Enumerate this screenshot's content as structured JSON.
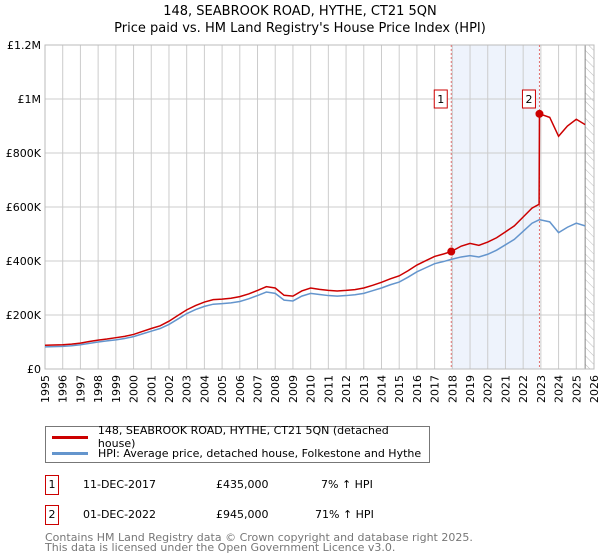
{
  "title": "148, SEABROOK ROAD, HYTHE, CT21 5QN",
  "subtitle": "Price paid vs. HM Land Registry's House Price Index (HPI)",
  "legend": [
    {
      "label": "148, SEABROOK ROAD, HYTHE, CT21 5QN (detached house)",
      "color": "#cc0000"
    },
    {
      "label": "HPI: Average price, detached house, Folkestone and Hythe",
      "color": "#6495cd"
    }
  ],
  "sales": [
    {
      "num": "1",
      "date": "11-DEC-2017",
      "price": "£435,000",
      "hpi": "7% ↑ HPI"
    },
    {
      "num": "2",
      "date": "01-DEC-2022",
      "price": "£945,000",
      "hpi": "71% ↑ HPI"
    }
  ],
  "footer": [
    "Contains HM Land Registry data © Crown copyright and database right 2025.",
    "This data is licensed under the Open Government Licence v3.0."
  ],
  "chart_data": {
    "type": "line",
    "title": "148, SEABROOK ROAD, HYTHE, CT21 5QN",
    "xlim": [
      1995,
      2026
    ],
    "ylim": [
      0,
      1200000
    ],
    "yticks": [
      0,
      200000,
      400000,
      600000,
      800000,
      1000000,
      1200000
    ],
    "ytick_labels": [
      "£0",
      "£200K",
      "£400K",
      "£600K",
      "£800K",
      "£1M",
      "£1.2M"
    ],
    "xticks": [
      1995,
      1996,
      1997,
      1998,
      1999,
      2000,
      2001,
      2002,
      2003,
      2004,
      2005,
      2006,
      2007,
      2008,
      2009,
      2010,
      2011,
      2012,
      2013,
      2014,
      2015,
      2016,
      2017,
      2018,
      2019,
      2020,
      2021,
      2022,
      2023,
      2024,
      2025,
      2026
    ],
    "grid": true,
    "shaded_range": [
      2017.94,
      2022.92
    ],
    "future_hatch_from": 2025.5,
    "markers": [
      {
        "label": "1",
        "x": 2017.94,
        "y": 435000
      },
      {
        "label": "2",
        "x": 2022.92,
        "y": 945000
      }
    ],
    "hpi": {
      "x": [
        1995,
        1995.5,
        1996,
        1996.5,
        1997,
        1997.5,
        1998,
        1998.5,
        1999,
        1999.5,
        2000,
        2000.5,
        2001,
        2001.5,
        2002,
        2002.5,
        2003,
        2003.5,
        2004,
        2004.5,
        2005,
        2005.5,
        2006,
        2006.5,
        2007,
        2007.5,
        2008,
        2008.5,
        2009,
        2009.5,
        2010,
        2010.5,
        2011,
        2011.5,
        2012,
        2012.5,
        2013,
        2013.5,
        2014,
        2014.5,
        2015,
        2015.5,
        2016,
        2016.5,
        2017,
        2017.5,
        2017.94,
        2018.5,
        2019,
        2019.5,
        2020,
        2020.5,
        2021,
        2021.5,
        2022,
        2022.5,
        2022.92,
        2023.5,
        2024,
        2024.5,
        2025,
        2025.5
      ],
      "y": [
        82000,
        83000,
        84000,
        86000,
        90000,
        95000,
        100000,
        104000,
        108000,
        113000,
        120000,
        130000,
        140000,
        150000,
        165000,
        185000,
        205000,
        220000,
        232000,
        240000,
        242000,
        245000,
        250000,
        260000,
        272000,
        285000,
        280000,
        255000,
        252000,
        270000,
        280000,
        276000,
        272000,
        270000,
        272000,
        275000,
        280000,
        290000,
        300000,
        312000,
        322000,
        340000,
        360000,
        375000,
        390000,
        398000,
        406000,
        415000,
        420000,
        415000,
        425000,
        440000,
        460000,
        480000,
        510000,
        540000,
        553000,
        545000,
        505000,
        525000,
        540000,
        530000
      ]
    },
    "property": {
      "x": [
        1995,
        1995.5,
        1996,
        1996.5,
        1997,
        1997.5,
        1998,
        1998.5,
        1999,
        1999.5,
        2000,
        2000.5,
        2001,
        2001.5,
        2002,
        2002.5,
        2003,
        2003.5,
        2004,
        2004.5,
        2005,
        2005.5,
        2006,
        2006.5,
        2007,
        2007.5,
        2008,
        2008.5,
        2009,
        2009.5,
        2010,
        2010.5,
        2011,
        2011.5,
        2012,
        2012.5,
        2013,
        2013.5,
        2014,
        2014.5,
        2015,
        2015.5,
        2016,
        2016.5,
        2017,
        2017.5,
        2017.94,
        2018.5,
        2019,
        2019.5,
        2020,
        2020.5,
        2021,
        2021.5,
        2022,
        2022.5,
        2022.9,
        2022.92,
        2023.5,
        2024,
        2024.5,
        2025,
        2025.5
      ],
      "y": [
        88000,
        89000,
        90000,
        92000,
        96000,
        102000,
        107000,
        111000,
        116000,
        121000,
        128000,
        139000,
        150000,
        160000,
        177000,
        198000,
        219000,
        235000,
        248000,
        257000,
        259000,
        262000,
        268000,
        278000,
        291000,
        305000,
        300000,
        273000,
        270000,
        289000,
        300000,
        295000,
        291000,
        289000,
        291000,
        294000,
        300000,
        310000,
        321000,
        334000,
        345000,
        364000,
        385000,
        401000,
        417000,
        426000,
        435000,
        455000,
        465000,
        458000,
        470000,
        486000,
        508000,
        530000,
        563000,
        596000,
        610000,
        945000,
        932000,
        862000,
        900000,
        925000,
        905000
      ]
    }
  }
}
